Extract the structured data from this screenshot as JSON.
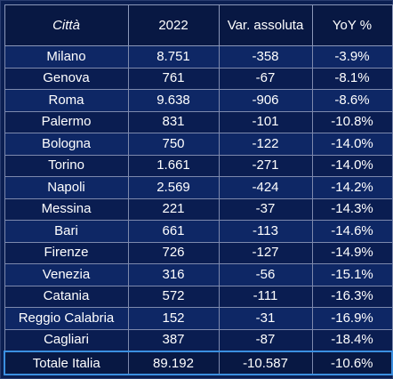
{
  "table": {
    "headers": [
      "Città",
      "2022",
      "Var. assoluta",
      "YoY %"
    ],
    "rows": [
      [
        "Milano",
        "8.751",
        "-358",
        "-3.9%"
      ],
      [
        "Genova",
        "761",
        "-67",
        "-8.1%"
      ],
      [
        "Roma",
        "9.638",
        "-906",
        "-8.6%"
      ],
      [
        "Palermo",
        "831",
        "-101",
        "-10.8%"
      ],
      [
        "Bologna",
        "750",
        "-122",
        "-14.0%"
      ],
      [
        "Torino",
        "1.661",
        "-271",
        "-14.0%"
      ],
      [
        "Napoli",
        "2.569",
        "-424",
        "-14.2%"
      ],
      [
        "Messina",
        "221",
        "-37",
        "-14.3%"
      ],
      [
        "Bari",
        "661",
        "-113",
        "-14.6%"
      ],
      [
        "Firenze",
        "726",
        "-127",
        "-14.9%"
      ],
      [
        "Venezia",
        "316",
        "-56",
        "-15.1%"
      ],
      [
        "Catania",
        "572",
        "-111",
        "-16.3%"
      ],
      [
        "Reggio Calabria",
        "152",
        "-31",
        "-16.9%"
      ],
      [
        "Cagliari",
        "387",
        "-87",
        "-18.4%"
      ]
    ],
    "total": [
      "Totale Italia",
      "89.192",
      "-10.587",
      "-10.6%"
    ]
  },
  "colors": {
    "background": "#0b1f52",
    "row_odd": "#0e2765",
    "row_even": "#0a1d51",
    "total_border": "#3b8fe0",
    "text": "#ffffff"
  }
}
